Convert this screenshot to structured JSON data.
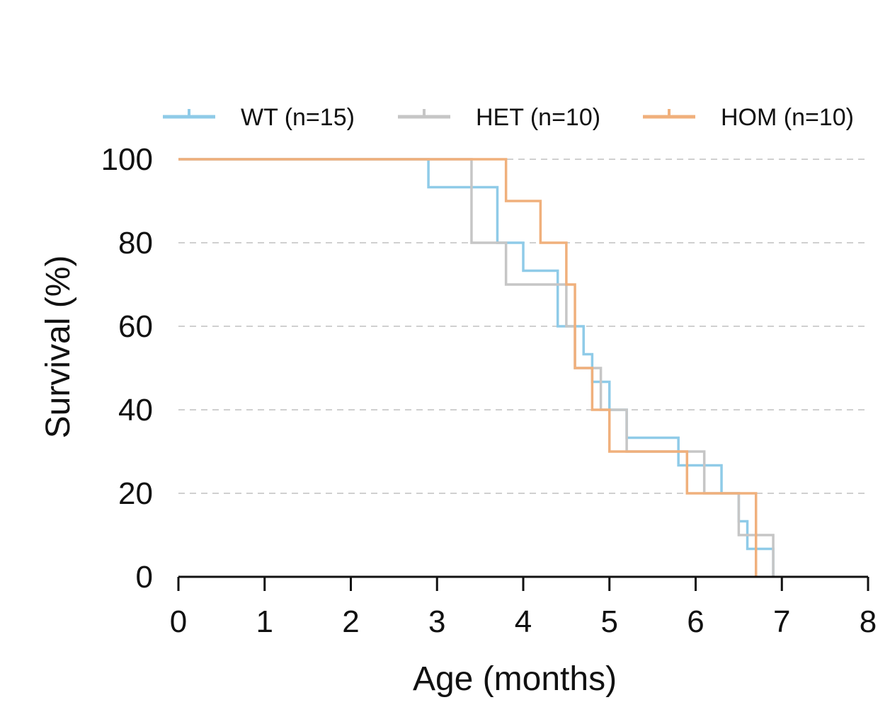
{
  "chart_data": {
    "type": "line",
    "subtype": "kaplan-meier step",
    "xlabel": "Age (months)",
    "ylabel": "Survival (%)",
    "xlim": [
      0,
      8
    ],
    "ylim": [
      0,
      100
    ],
    "xticks": [
      0,
      1,
      2,
      3,
      4,
      5,
      6,
      7,
      8
    ],
    "yticks": [
      0,
      20,
      40,
      60,
      80,
      100
    ],
    "grid": "horizontal-dashed",
    "legend_position": "top",
    "series": [
      {
        "name": "WT (n=15)",
        "color": "#8fcbe8",
        "x": [
          0,
          2.9,
          3.7,
          4.0,
          4.4,
          4.7,
          4.8,
          5.0,
          5.2,
          5.8,
          5.9,
          6.3,
          6.5,
          6.6,
          6.9
        ],
        "y": [
          100,
          93.3,
          80,
          73.3,
          60,
          53.3,
          46.7,
          40,
          33.3,
          26.7,
          26.7,
          20,
          13.3,
          6.7,
          0
        ]
      },
      {
        "name": "HET (n=10)",
        "color": "#c6c6c6",
        "x": [
          0,
          3.4,
          3.8,
          4.5,
          4.6,
          4.9,
          5.2,
          6.1,
          6.5,
          6.9
        ],
        "y": [
          100,
          80,
          70,
          60,
          50,
          40,
          30,
          20,
          10,
          0
        ]
      },
      {
        "name": "HOM (n=10)",
        "color": "#f0b07c",
        "x": [
          0,
          3.8,
          4.2,
          4.5,
          4.6,
          4.8,
          5.0,
          5.9,
          6.7
        ],
        "y": [
          100,
          90,
          80,
          70,
          50,
          40,
          30,
          20,
          0
        ]
      }
    ]
  }
}
